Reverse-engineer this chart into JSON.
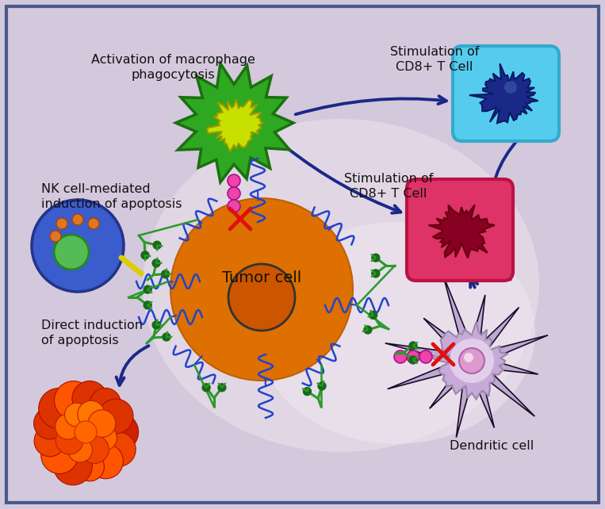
{
  "bg_color_top": "#c8c0d8",
  "bg_color_bot": "#e8dde8",
  "border_color": "#446688",
  "texts": {
    "macrophage": "Activation of macrophage\nphagocytosis",
    "nk_cell": "NK cell-mediated\ninduction of apoptosis",
    "direct_apoptosis": "Direct induction\nof apoptosis",
    "cd8_top": "Stimulation of\nCD8+ T Cell",
    "cd8_bottom": "Stimulation of\nCD8+ T Cell",
    "tumor": "Tumor cell",
    "dendritic": "Dendritic cell"
  },
  "colors": {
    "macrophage_outer": "#2ea820",
    "macrophage_inner_edge": "#1a7010",
    "macrophage_nucleus": "#c8e800",
    "nk_cell": "#3a5ccc",
    "nk_nucleus": "#44aa44",
    "nk_dots": "#cc7722",
    "tumor_outer": "#e07810",
    "tumor_gradient_mid": "#d06008",
    "tumor_inner": "#cc5500",
    "tumor_nucleus": "#bb4400",
    "tumor_text": "#1a1a00",
    "membrane_lines": "#2244cc",
    "antibody_y": "#2a9a2a",
    "antibody_tip": "#1a6a1a",
    "sirpa_bead": "#ee44aa",
    "sirpa_stem": "#bb88aa",
    "x_mark": "#dd1111",
    "dead_cell_outer": "#dd4400",
    "dead_cell_inner": "#ff7700",
    "cd8_top_bg": "#44bbee",
    "cd8_top_border": "#22aadd",
    "cd8_top_nucleus": "#1a2888",
    "cd8_bot_bg": "#dd3366",
    "cd8_bot_border": "#bb1144",
    "cd8_bot_nucleus": "#880022",
    "dendritic_body": "#c0aad0",
    "dendritic_spikes": "#221144",
    "dendritic_center": "#e8c8e0",
    "dendritic_nucleus": "#cc88cc",
    "arrow_color": "#1a2888",
    "nk_yellow": "#ddcc00"
  }
}
